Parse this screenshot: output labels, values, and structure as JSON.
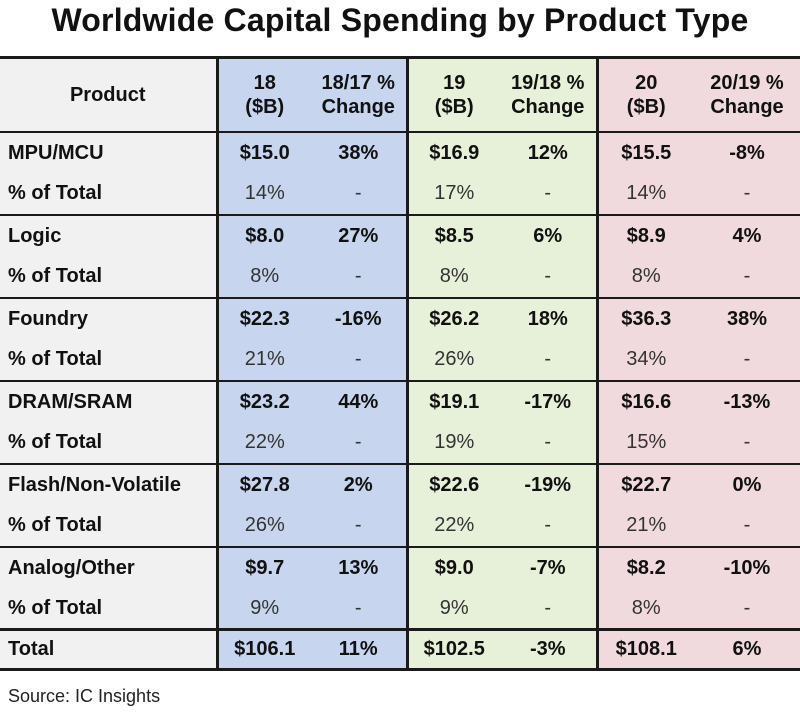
{
  "title": "Worldwide Capital Spending by Product Type",
  "source": "Source: IC Insights",
  "columns": {
    "product": "Product",
    "c18": [
      "18",
      "($B)"
    ],
    "c18chg": [
      "18/17 %",
      "Change"
    ],
    "c19": [
      "19",
      "($B)"
    ],
    "c19chg": [
      "19/18 %",
      "Change"
    ],
    "c20": [
      "20",
      "($B)"
    ],
    "c20chg": [
      "20/19 %",
      "Change"
    ]
  },
  "colors": {
    "col18": "#c7d6ee",
    "col19": "#e7f0d8",
    "col20": "#f1dadd",
    "product_col": "#f1f1f1"
  },
  "chart_data": {
    "type": "table",
    "title": "Worldwide Capital Spending by Product Type",
    "rows": [
      {
        "product": "MPU/MCU",
        "v18": "$15.0",
        "chg18": "38%",
        "v19": "$16.9",
        "chg19": "12%",
        "v20": "$15.5",
        "chg20": "-8%",
        "share_label": "% of Total",
        "s18": "14%",
        "s19": "17%",
        "s20": "14%"
      },
      {
        "product": "Logic",
        "v18": "$8.0",
        "chg18": "27%",
        "v19": "$8.5",
        "chg19": "6%",
        "v20": "$8.9",
        "chg20": "4%",
        "share_label": "% of Total",
        "s18": "8%",
        "s19": "8%",
        "s20": "8%"
      },
      {
        "product": "Foundry",
        "v18": "$22.3",
        "chg18": "-16%",
        "v19": "$26.2",
        "chg19": "18%",
        "v20": "$36.3",
        "chg20": "38%",
        "share_label": "% of Total",
        "s18": "21%",
        "s19": "26%",
        "s20": "34%"
      },
      {
        "product": "DRAM/SRAM",
        "v18": "$23.2",
        "chg18": "44%",
        "v19": "$19.1",
        "chg19": "-17%",
        "v20": "$16.6",
        "chg20": "-13%",
        "share_label": "% of Total",
        "s18": "22%",
        "s19": "19%",
        "s20": "15%"
      },
      {
        "product": "Flash/Non-Volatile",
        "v18": "$27.8",
        "chg18": "2%",
        "v19": "$22.6",
        "chg19": "-19%",
        "v20": "$22.7",
        "chg20": "0%",
        "share_label": "% of Total",
        "s18": "26%",
        "s19": "22%",
        "s20": "21%"
      },
      {
        "product": "Analog/Other",
        "v18": "$9.7",
        "chg18": "13%",
        "v19": "$9.0",
        "chg19": "-7%",
        "v20": "$8.2",
        "chg20": "-10%",
        "share_label": "% of Total",
        "s18": "9%",
        "s19": "9%",
        "s20": "8%"
      }
    ],
    "total": {
      "product": "Total",
      "v18": "$106.1",
      "chg18": "11%",
      "v19": "$102.5",
      "chg19": "-3%",
      "v20": "$108.1",
      "chg20": "6%"
    },
    "dash": "-"
  }
}
